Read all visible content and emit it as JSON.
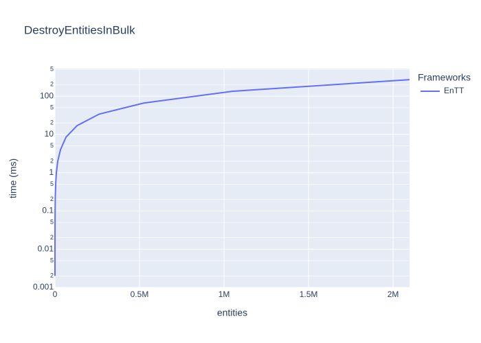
{
  "chart_data": {
    "type": "line",
    "title": "DestroyEntitiesInBulk",
    "x_label": "entities",
    "y_label": "time (ms)",
    "legend_title": "Frameworks",
    "x": [
      16,
      32,
      64,
      128,
      256,
      512,
      1024,
      2048,
      4096,
      8192,
      16384,
      32768,
      65536,
      131072,
      262144,
      524288,
      1048576,
      2097152
    ],
    "series": [
      {
        "name": "EnTT",
        "color": "#636efa",
        "values": [
          0.002,
          0.004,
          0.008,
          0.015,
          0.03,
          0.06,
          0.12,
          0.25,
          0.5,
          1,
          2,
          4,
          8.5,
          17,
          34,
          66,
          134,
          270
        ]
      }
    ],
    "xlim": [
      0,
      2097152
    ],
    "xticks": [
      0,
      {
        "value": 500000,
        "label": "0.5M"
      },
      {
        "value": 1000000,
        "label": "1M"
      },
      {
        "value": 1500000,
        "label": "1.5M"
      },
      {
        "value": 2000000,
        "label": "2M"
      }
    ],
    "ylim": [
      0.001,
      525
    ],
    "y_log": true,
    "yticks": [
      0.001,
      {
        "value": 0.002,
        "label": "2"
      },
      {
        "value": 0.005,
        "label": "5"
      },
      0.01,
      {
        "value": 0.02,
        "label": "2"
      },
      {
        "value": 0.05,
        "label": "5"
      },
      0.1,
      {
        "value": 0.2,
        "label": "2"
      },
      {
        "value": 0.5,
        "label": "5"
      },
      1,
      2,
      5,
      10,
      {
        "value": 20,
        "label": "2"
      },
      {
        "value": 50,
        "label": "5"
      },
      100,
      {
        "value": 200,
        "label": "2"
      },
      {
        "value": 500,
        "label": "5"
      }
    ],
    "grid": true
  }
}
